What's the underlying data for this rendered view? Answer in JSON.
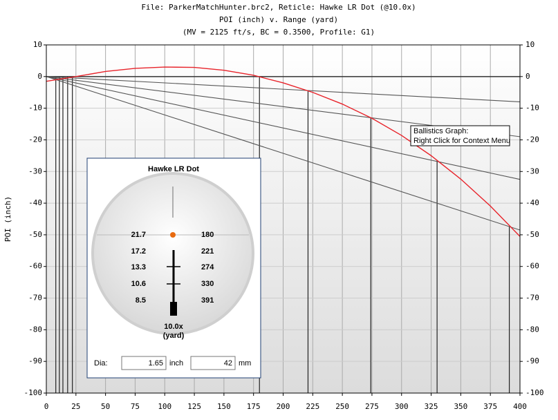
{
  "chart_data": {
    "type": "line",
    "title": "File: ParkerMatchHunter.brc2, Reticle: Hawke LR Dot (@10.0x)",
    "subtitle": [
      "POI (inch) v. Range (yard)",
      "(MV = 2125 ft/s, BC = 0.3500, Profile: G1)"
    ],
    "y_label": "POI (inch)",
    "xlim": [
      0,
      400
    ],
    "xticks": [
      0,
      25,
      50,
      75,
      100,
      125,
      150,
      175,
      200,
      225,
      250,
      275,
      300,
      325,
      350,
      375,
      400
    ],
    "ylim": [
      -100,
      10
    ],
    "yticks": [
      -100,
      -90,
      -80,
      -70,
      -60,
      -50,
      -40,
      -30,
      -20,
      -10,
      0,
      10
    ],
    "grid": true,
    "series": [
      {
        "color": "#e8232a",
        "x": [
          0,
          25,
          50,
          75,
          100,
          125,
          150,
          175,
          200,
          225,
          250,
          275,
          300,
          325,
          350,
          375,
          400
        ],
        "values": [
          -1.5,
          0,
          1.6,
          2.6,
          3.0,
          2.9,
          2.0,
          0.4,
          -2.0,
          -5.0,
          -8.7,
          -13.2,
          -18.6,
          -25.0,
          -32.4,
          -40.9,
          -50.5
        ]
      },
      {
        "color": "#555555",
        "x": [
          0,
          400
        ],
        "values": [
          0,
          -8
        ]
      },
      {
        "color": "#555555",
        "x": [
          0,
          400
        ],
        "values": [
          0,
          -19
        ]
      },
      {
        "color": "#555555",
        "x": [
          0,
          400
        ],
        "values": [
          0,
          -32.5
        ]
      },
      {
        "color": "#555555",
        "x": [
          0,
          400
        ],
        "values": [
          0,
          -48.5
        ]
      }
    ],
    "drop_lines": {
      "color": "#222222",
      "x": [
        8,
        11,
        14,
        18,
        22,
        180,
        221,
        274,
        330,
        391
      ],
      "values": [
        0,
        0,
        0,
        0,
        0,
        0,
        -4.5,
        -13,
        -26.5,
        -47.5
      ]
    },
    "tooltip": [
      "Ballistics Graph:",
      "Right Click for Context Menu"
    ]
  },
  "reticle_panel": {
    "title": "Hawke LR Dot",
    "drops": [
      21.7,
      17.2,
      13.3,
      10.6,
      8.5
    ],
    "ranges": [
      180,
      221,
      274,
      330,
      391
    ],
    "magnification": "10.0x",
    "unit": "(yard)",
    "dia_label": "Dia:",
    "dia_inch": 1.65,
    "inch_unit": "inch",
    "dia_mm": 42,
    "mm_unit": "mm"
  }
}
